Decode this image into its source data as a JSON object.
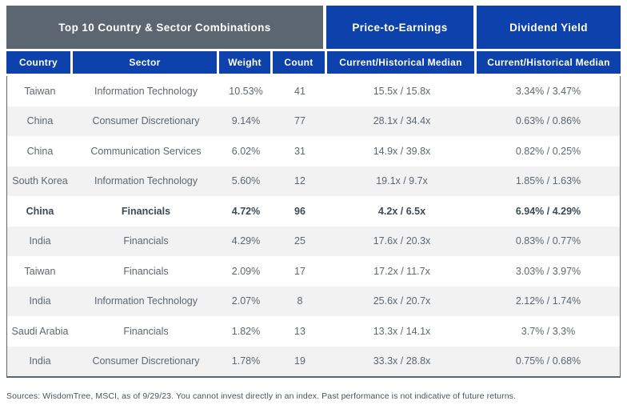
{
  "table": {
    "title": "Top 10 Country & Sector Combinations",
    "group_headers": {
      "price_to_earnings": "Price-to-Earnings",
      "dividend_yield": "Dividend Yield"
    },
    "columns": {
      "country": "Country",
      "sector": "Sector",
      "weight": "Weight",
      "count": "Count",
      "pe_sub": "Current/Historical Median",
      "dy_sub": "Current/Historical Median"
    },
    "rows": [
      {
        "country": "Taiwan",
        "sector": "Information Technology",
        "weight": "10.53%",
        "count": "41",
        "pe": "15.5x / 15.8x",
        "dy": "3.34% / 3.47%",
        "bold": false
      },
      {
        "country": "China",
        "sector": "Consumer Discretionary",
        "weight": "9.14%",
        "count": "77",
        "pe": "28.1x / 34.4x",
        "dy": "0.63% / 0.86%",
        "bold": false
      },
      {
        "country": "China",
        "sector": "Communication Services",
        "weight": "6.02%",
        "count": "31",
        "pe": "14.9x / 39.8x",
        "dy": "0.82% / 0.25%",
        "bold": false
      },
      {
        "country": "South Korea",
        "sector": "Information Technology",
        "weight": "5.60%",
        "count": "12",
        "pe": "19.1x / 9.7x",
        "dy": "1.85% / 1.63%",
        "bold": false
      },
      {
        "country": "China",
        "sector": "Financials",
        "weight": "4.72%",
        "count": "96",
        "pe": "4.2x / 6.5x",
        "dy": "6.94% / 4.29%",
        "bold": true
      },
      {
        "country": "India",
        "sector": "Financials",
        "weight": "4.29%",
        "count": "25",
        "pe": "17.6x / 20.3x",
        "dy": "0.83% / 0.77%",
        "bold": false
      },
      {
        "country": "Taiwan",
        "sector": "Financials",
        "weight": "2.09%",
        "count": "17",
        "pe": "17.2x / 11.7x",
        "dy": "3.03% / 3.97%",
        "bold": false
      },
      {
        "country": "India",
        "sector": "Information Technology",
        "weight": "2.07%",
        "count": "8",
        "pe": "25.6x / 20.7x",
        "dy": "2.12% / 1.74%",
        "bold": false
      },
      {
        "country": "Saudi Arabia",
        "sector": "Financials",
        "weight": "1.82%",
        "count": "13",
        "pe": "13.3x / 14.1x",
        "dy": "3.7% / 3.3%",
        "bold": false
      },
      {
        "country": "India",
        "sector": "Consumer Discretionary",
        "weight": "1.78%",
        "count": "19",
        "pe": "33.3x / 28.8x",
        "dy": "0.75% / 0.68%",
        "bold": false
      }
    ]
  },
  "footer": "Sources: WisdomTree, MSCI, as of 9/29/23. You cannot invest directly in an index. Past performance is not indicative of future returns.",
  "colors": {
    "header_blue": "#0d41ab",
    "header_gray": "#5b6670",
    "row_alt": "#f2f2f2",
    "data_text": "#5d6771",
    "bold_text": "#3e4954",
    "footer_text": "#47545f"
  },
  "chart_data": {
    "type": "table",
    "title": "Top 10 Country & Sector Combinations",
    "columns": [
      "Country",
      "Sector",
      "Weight",
      "Count",
      "Price-to-Earnings Current/Historical Median",
      "Dividend Yield Current/Historical Median"
    ],
    "rows": [
      [
        "Taiwan",
        "Information Technology",
        "10.53%",
        41,
        "15.5x / 15.8x",
        "3.34% / 3.47%"
      ],
      [
        "China",
        "Consumer Discretionary",
        "9.14%",
        77,
        "28.1x / 34.4x",
        "0.63% / 0.86%"
      ],
      [
        "China",
        "Communication Services",
        "6.02%",
        31,
        "14.9x / 39.8x",
        "0.82% / 0.25%"
      ],
      [
        "South Korea",
        "Information Technology",
        "5.60%",
        12,
        "19.1x / 9.7x",
        "1.85% / 1.63%"
      ],
      [
        "China",
        "Financials",
        "4.72%",
        96,
        "4.2x / 6.5x",
        "6.94% / 4.29%"
      ],
      [
        "India",
        "Financials",
        "4.29%",
        25,
        "17.6x / 20.3x",
        "0.83% / 0.77%"
      ],
      [
        "Taiwan",
        "Financials",
        "2.09%",
        17,
        "17.2x / 11.7x",
        "3.03% / 3.97%"
      ],
      [
        "India",
        "Information Technology",
        "2.07%",
        8,
        "25.6x / 20.7x",
        "2.12% / 1.74%"
      ],
      [
        "Saudi Arabia",
        "Financials",
        "1.82%",
        13,
        "13.3x / 14.1x",
        "3.7% / 3.3%"
      ],
      [
        "India",
        "Consumer Discretionary",
        "1.78%",
        19,
        "33.3x / 28.8x",
        "0.75% / 0.68%"
      ]
    ],
    "notes": "Sources: WisdomTree, MSCI, as of 9/29/23. You cannot invest directly in an index. Past performance is not indicative of future returns.",
    "highlighted_row_index": 4
  }
}
